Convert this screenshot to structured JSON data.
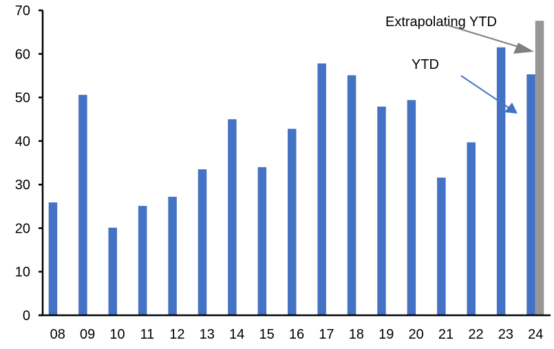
{
  "chart_data": {
    "type": "bar",
    "categories": [
      "08",
      "09",
      "10",
      "11",
      "12",
      "13",
      "14",
      "15",
      "16",
      "17",
      "18",
      "19",
      "20",
      "21",
      "22",
      "23",
      "24"
    ],
    "series": [
      {
        "values": [
          25.9,
          50.6,
          20.1,
          25.1,
          27.2,
          33.5,
          45.0,
          34.0,
          42.8,
          57.8,
          55.1,
          47.9,
          49.4,
          31.6,
          39.7,
          61.5,
          55.3
        ],
        "color": "#4472c4"
      },
      {
        "values": [
          null,
          null,
          null,
          null,
          null,
          null,
          null,
          null,
          null,
          null,
          null,
          null,
          null,
          null,
          null,
          null,
          67.6
        ],
        "color": "#969696"
      }
    ],
    "yticks": [
      "0",
      "10",
      "20",
      "30",
      "40",
      "50",
      "60",
      "70"
    ],
    "ylim": [
      0,
      70
    ],
    "grid": false,
    "annotations": [
      {
        "text": "Extrapolating YTD",
        "color": "#7f7f7f"
      },
      {
        "text": "YTD",
        "color": "#4472c4"
      }
    ]
  }
}
